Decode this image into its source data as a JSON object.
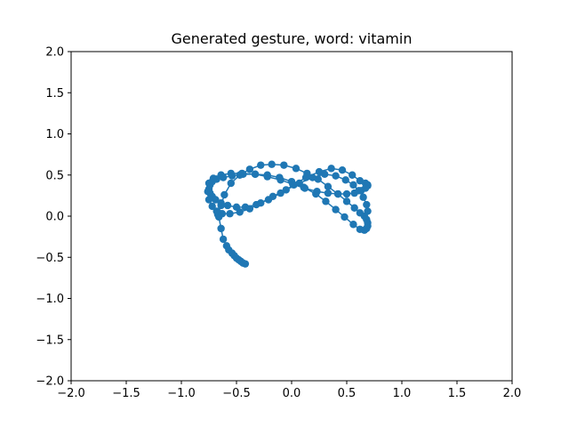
{
  "chart_data": {
    "type": "line",
    "title": "Generated gesture, word: vitamin",
    "xlabel": "",
    "ylabel": "",
    "xlim": [
      -2.0,
      2.0
    ],
    "ylim": [
      -2.0,
      2.0
    ],
    "xticks": [
      "−2.0",
      "−1.5",
      "−1.0",
      "−0.5",
      "0.0",
      "0.5",
      "1.0",
      "1.5",
      "2.0"
    ],
    "yticks": [
      "2.0",
      "1.5",
      "1.0",
      "0.5",
      "0.0",
      "−0.5",
      "−1.0",
      "−1.5",
      "−2.0"
    ],
    "grid": false,
    "marker": "circle",
    "color": "#1f77b4",
    "series": [
      {
        "x": [
          -0.42,
          -0.44,
          -0.46,
          -0.48,
          -0.5,
          -0.52,
          -0.54,
          -0.57,
          -0.59,
          -0.62,
          -0.64,
          -0.66,
          -0.65,
          -0.67,
          -0.64,
          -0.61,
          -0.55,
          -0.47,
          -0.38,
          -0.28,
          -0.18,
          -0.07,
          0.04,
          0.14,
          0.24,
          0.33,
          0.42,
          0.5,
          0.57,
          0.62,
          0.66,
          0.68,
          0.69,
          0.69,
          0.68,
          0.66,
          0.62,
          0.56,
          0.48,
          0.4,
          0.31,
          0.22,
          0.11,
          0.0,
          -0.11,
          -0.22,
          -0.33,
          -0.44,
          -0.54,
          -0.62,
          -0.68,
          -0.72,
          -0.74,
          -0.75,
          -0.74,
          -0.72,
          -0.69,
          -0.64,
          -0.58,
          -0.5,
          -0.42,
          -0.32,
          -0.21,
          -0.1,
          0.02,
          0.13,
          0.25,
          0.36,
          0.46,
          0.55,
          0.62,
          0.67,
          0.69,
          0.69,
          0.67,
          0.63,
          0.57,
          0.5,
          0.42,
          0.33,
          0.23,
          0.12,
          0.01,
          -0.1,
          -0.22,
          -0.33,
          -0.45,
          -0.55,
          -0.64,
          -0.71,
          -0.75,
          -0.76,
          -0.75,
          -0.72,
          -0.68,
          -0.63,
          -0.56,
          -0.47,
          -0.38,
          -0.28,
          -0.17,
          -0.05,
          0.07,
          0.19,
          0.3,
          0.4,
          0.49,
          0.56,
          0.61,
          0.65,
          0.68,
          0.69
        ],
        "y": [
          -0.58,
          -0.57,
          -0.55,
          -0.53,
          -0.51,
          -0.48,
          -0.45,
          -0.41,
          -0.36,
          -0.28,
          -0.15,
          -0.01,
          0.03,
          0.02,
          0.13,
          0.26,
          0.4,
          0.5,
          0.57,
          0.62,
          0.63,
          0.62,
          0.58,
          0.52,
          0.45,
          0.36,
          0.27,
          0.18,
          0.1,
          0.04,
          0.0,
          -0.04,
          -0.08,
          -0.12,
          -0.15,
          -0.17,
          -0.16,
          -0.1,
          -0.01,
          0.08,
          0.18,
          0.27,
          0.35,
          0.42,
          0.47,
          0.5,
          0.51,
          0.51,
          0.49,
          0.47,
          0.45,
          0.42,
          0.38,
          0.33,
          0.28,
          0.24,
          0.2,
          0.16,
          0.13,
          0.11,
          0.11,
          0.14,
          0.2,
          0.28,
          0.38,
          0.47,
          0.54,
          0.58,
          0.56,
          0.5,
          0.43,
          0.4,
          0.38,
          0.37,
          0.34,
          0.31,
          0.28,
          0.27,
          0.27,
          0.28,
          0.3,
          0.34,
          0.39,
          0.44,
          0.48,
          0.51,
          0.52,
          0.52,
          0.5,
          0.46,
          0.4,
          0.3,
          0.2,
          0.12,
          0.06,
          0.03,
          0.03,
          0.05,
          0.09,
          0.16,
          0.24,
          0.32,
          0.4,
          0.47,
          0.51,
          0.49,
          0.44,
          0.38,
          0.31,
          0.23,
          0.14,
          0.06
        ]
      }
    ]
  }
}
